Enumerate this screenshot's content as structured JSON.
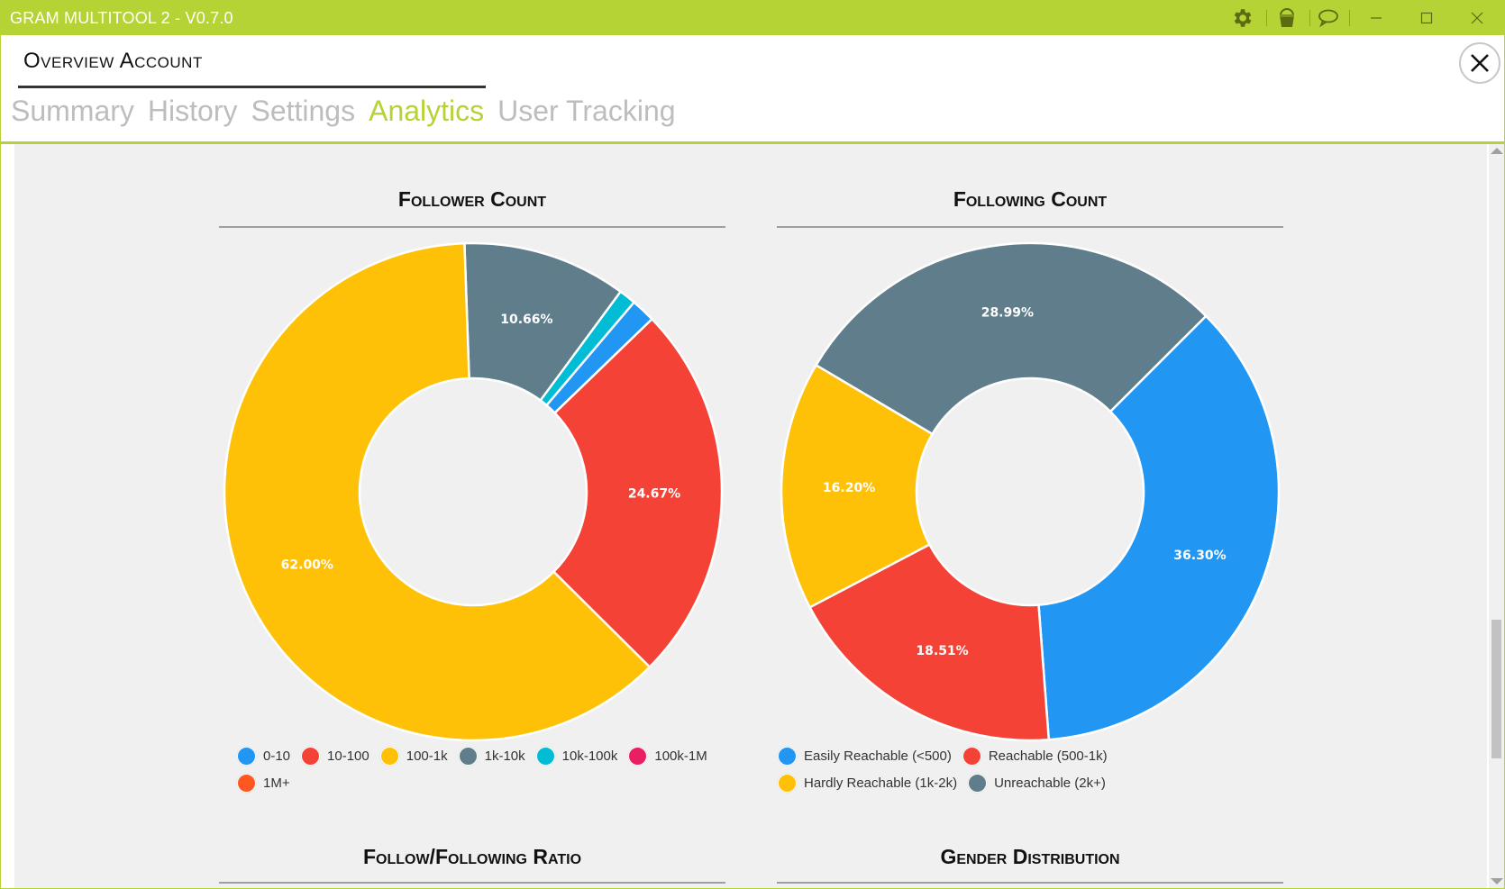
{
  "window": {
    "title": "GRAM MULTITOOL 2 - V0.7.0",
    "accent_color": "#b5d334",
    "toolbar_icons": [
      "gear-icon",
      "paint-bucket-icon",
      "chat-bubble-icon"
    ],
    "controls": [
      "minimize",
      "maximize",
      "close"
    ]
  },
  "header": {
    "title": "Overview Account",
    "tabs": [
      {
        "label": "Summary",
        "active": false
      },
      {
        "label": "History",
        "active": false
      },
      {
        "label": "Settings",
        "active": false
      },
      {
        "label": "Analytics",
        "active": true
      },
      {
        "label": "User Tracking",
        "active": false
      }
    ]
  },
  "sections": {
    "follower_count": "Follower Count",
    "following_count": "Following Count",
    "follow_ratio": "Follow/Following Ratio",
    "gender_distribution": "Gender Distribution"
  },
  "chart_data": [
    {
      "type": "pie",
      "title": "Follower Count",
      "categories": [
        "0-10",
        "10-100",
        "100-1k",
        "1k-10k",
        "10k-100k",
        "100k-1M",
        "1M+"
      ],
      "colors": [
        "#2196f3",
        "#f44336",
        "#ffc107",
        "#607d8b",
        "#00bcd4",
        "#e91e63",
        "#ff5722"
      ],
      "values": [
        1.57,
        24.67,
        62.0,
        10.66,
        1.1,
        0,
        0
      ],
      "labels_shown": [
        "",
        "24.67%",
        "62.00%",
        "10.66%",
        "",
        "",
        ""
      ],
      "legend_position": "bottom"
    },
    {
      "type": "pie",
      "title": "Following Count",
      "categories": [
        "Easily Reachable (<500)",
        "Reachable (500-1k)",
        "Hardly Reachable (1k-2k)",
        "Unreachable (2k+)"
      ],
      "colors": [
        "#2196f3",
        "#f44336",
        "#ffc107",
        "#607d8b"
      ],
      "values": [
        36.3,
        18.51,
        16.2,
        28.99
      ],
      "labels_shown": [
        "36.30%",
        "18.51%",
        "16.20%",
        "28.99%"
      ],
      "legend_position": "bottom"
    }
  ]
}
